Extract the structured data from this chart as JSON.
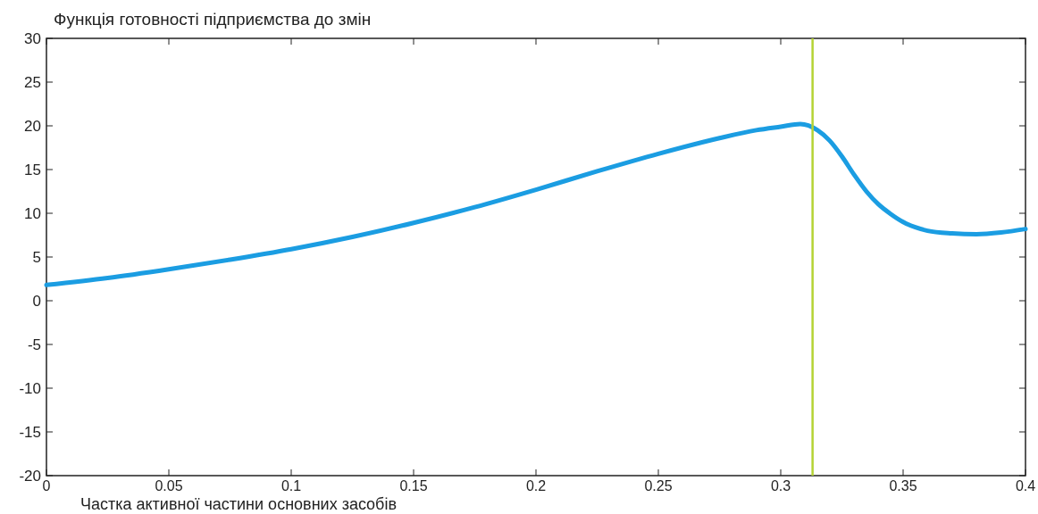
{
  "chart_data": {
    "type": "line",
    "title": "Функція готовності підприємства до змін",
    "xlabel": "Частка активної частини основних засобів",
    "series": [
      {
        "color": "#1b9de2",
        "x": [
          0,
          0.025,
          0.05,
          0.075,
          0.1,
          0.125,
          0.15,
          0.175,
          0.2,
          0.225,
          0.25,
          0.275,
          0.29,
          0.3,
          0.308,
          0.315,
          0.32,
          0.325,
          0.33,
          0.335,
          0.34,
          0.345,
          0.35,
          0.355,
          0.36,
          0.37,
          0.38,
          0.39,
          0.4
        ],
        "values": [
          1.8,
          2.6,
          3.6,
          4.7,
          5.9,
          7.3,
          8.9,
          10.7,
          12.7,
          14.8,
          16.8,
          18.6,
          19.5,
          19.9,
          20.2,
          19.5,
          18.3,
          16.5,
          14.4,
          12.5,
          11,
          9.9,
          9,
          8.4,
          8,
          7.7,
          7.6,
          7.8,
          8.2
        ]
      }
    ],
    "xlim": [
      0,
      0.4
    ],
    "ylim": [
      -20,
      30
    ],
    "xticks": [
      0,
      0.05,
      0.1,
      0.15,
      0.2,
      0.25,
      0.3,
      0.35,
      0.4
    ],
    "yticks": [
      -20,
      -15,
      -10,
      -5,
      0,
      5,
      10,
      15,
      20,
      25,
      30
    ],
    "grid": false,
    "marker": "none",
    "line_style": "solid",
    "ref_lines": [
      {
        "axis": "x",
        "value": 0.313,
        "color": "#b5d334"
      }
    ]
  }
}
